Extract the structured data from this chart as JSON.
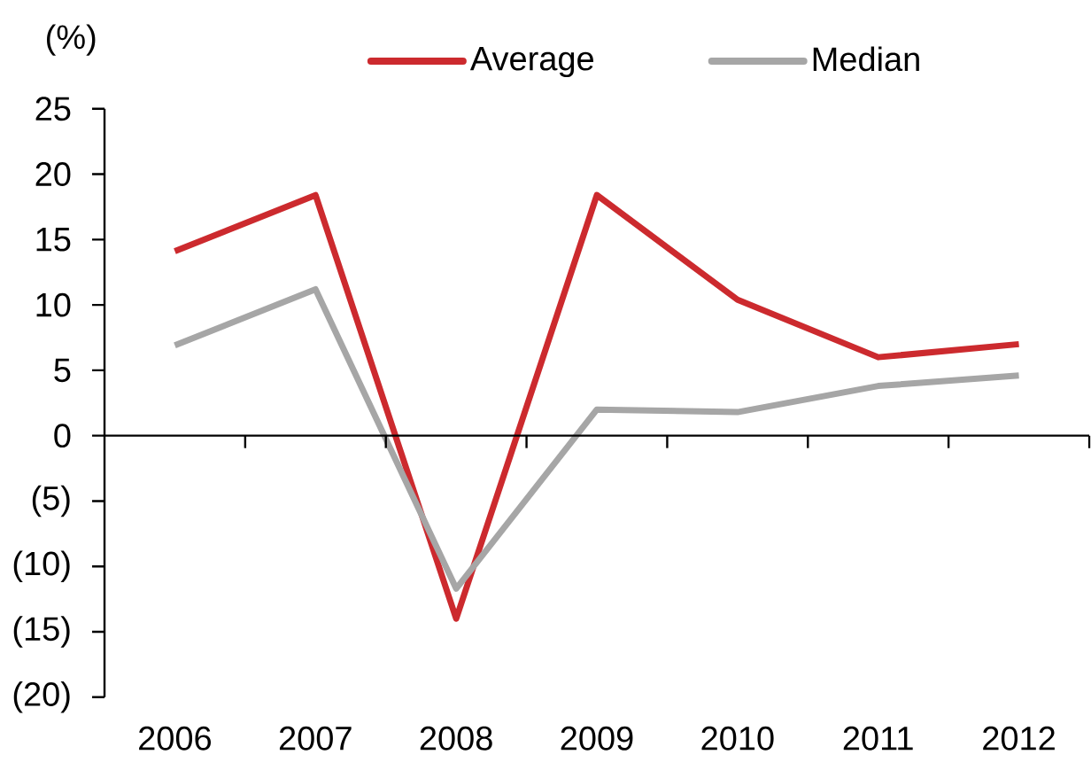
{
  "chart_data": {
    "type": "line",
    "ylabel": "(%)",
    "categories": [
      "2006",
      "2007",
      "2008",
      "2009",
      "2010",
      "2011",
      "2012"
    ],
    "series": [
      {
        "name": "Average",
        "color": "#cc2a2e",
        "values": [
          14.1,
          18.4,
          -14.0,
          18.4,
          10.4,
          6.0,
          7.0
        ]
      },
      {
        "name": "Median",
        "color": "#a6a6a6",
        "values": [
          6.9,
          11.2,
          -11.7,
          2.0,
          1.8,
          3.8,
          4.6
        ]
      }
    ],
    "ylim": [
      -20,
      25
    ],
    "yticks": [
      {
        "value": -20,
        "label": "(20)"
      },
      {
        "value": -15,
        "label": "(15)"
      },
      {
        "value": -10,
        "label": "(10)"
      },
      {
        "value": -5,
        "label": "(5)"
      },
      0,
      5,
      10,
      15,
      20,
      25
    ],
    "legend": "top"
  }
}
